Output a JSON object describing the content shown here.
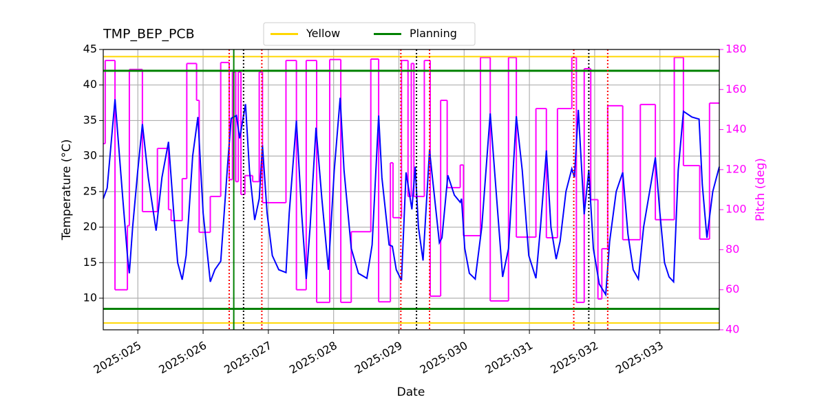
{
  "chart_data": {
    "type": "line",
    "title": "TMP_BEP_PCB",
    "xlabel": "Date",
    "ylabel": "Temperature (°C)",
    "y2label": "Pitch (deg)",
    "xlim": [
      24.47,
      33.91
    ],
    "ylim": [
      5.55,
      45
    ],
    "y2lim": [
      40,
      180
    ],
    "xticks": [
      {
        "value": 25,
        "label": "2025:025"
      },
      {
        "value": 26,
        "label": "2025:026"
      },
      {
        "value": 27,
        "label": "2025:027"
      },
      {
        "value": 28,
        "label": "2025:028"
      },
      {
        "value": 29,
        "label": "2025:029"
      },
      {
        "value": 30,
        "label": "2025:030"
      },
      {
        "value": 31,
        "label": "2025:031"
      },
      {
        "value": 32,
        "label": "2025:032"
      },
      {
        "value": 33,
        "label": "2025:033"
      }
    ],
    "yticks": [
      10,
      15,
      20,
      25,
      30,
      35,
      40,
      45
    ],
    "y2ticks": [
      40,
      60,
      80,
      100,
      120,
      140,
      160,
      180
    ],
    "grid": true,
    "legend": "upper center",
    "y2color": "#ff00ff",
    "limit_lines": [
      {
        "name": "Yellow",
        "color": "#ffd700",
        "values": [
          44,
          6.5
        ]
      },
      {
        "name": "Planning",
        "color": "#008000",
        "values": [
          42,
          8.5
        ]
      }
    ],
    "vlines": [
      {
        "color": "#008000",
        "style": "solid",
        "x": [
          26.47
        ]
      },
      {
        "color": "#ff0000",
        "style": "dotted",
        "x": [
          26.4,
          26.9,
          29.03,
          29.47,
          31.68,
          32.2
        ]
      },
      {
        "color": "#000000",
        "style": "dotted",
        "x": [
          26.62,
          29.27,
          31.91
        ]
      }
    ],
    "series": [
      {
        "color": "#ff00ff",
        "axis": "y2",
        "step": "post",
        "x": [
          24.47,
          24.5,
          24.65,
          24.84,
          24.87,
          25.07,
          25.3,
          25.47,
          25.51,
          25.68,
          25.75,
          25.9,
          25.94,
          26.11,
          26.27,
          26.4,
          26.45,
          26.5,
          26.54,
          26.58,
          26.64,
          26.76,
          26.86,
          26.91,
          27.27,
          27.43,
          27.58,
          27.74,
          27.94,
          28.11,
          28.27,
          28.57,
          28.69,
          28.87,
          28.91,
          29.04,
          29.14,
          29.19,
          29.23,
          29.39,
          29.48,
          29.64,
          29.74,
          29.94,
          29.99,
          30.25,
          30.4,
          30.68,
          30.8,
          31.1,
          31.26,
          31.43,
          31.65,
          31.72,
          31.84,
          31.94,
          32.05,
          32.11,
          32.2,
          32.43,
          32.7,
          32.93,
          33.22,
          33.36,
          33.61,
          33.76
        ],
        "values": [
          133,
          174.5,
          60,
          92,
          170,
          99,
          130.6,
          100,
          94.5,
          115.5,
          173,
          154.6,
          88.7,
          106.6,
          173.5,
          115,
          168.7,
          114,
          168.7,
          107.6,
          117,
          114,
          168.7,
          103.5,
          174.5,
          60,
          174.5,
          53.7,
          175,
          53.7,
          89,
          175.2,
          54,
          123.4,
          96,
          174.5,
          106.6,
          173,
          106.6,
          174.5,
          56.8,
          154.6,
          111,
          122.3,
          87,
          176,
          54.4,
          176,
          86.3,
          150.5,
          86,
          150.5,
          176,
          53.7,
          170.4,
          105,
          55.4,
          80.5,
          151.9,
          85,
          152.5,
          95,
          176,
          122,
          85.3,
          153.2
        ]
      },
      {
        "color": "#0000ff",
        "x": [
          24.47,
          24.53,
          24.65,
          24.77,
          24.84,
          24.87,
          24.92,
          25.0,
          25.07,
          25.16,
          25.28,
          25.37,
          25.47,
          25.55,
          25.61,
          25.68,
          25.74,
          25.84,
          25.92,
          26.0,
          26.11,
          26.18,
          26.27,
          26.37,
          26.43,
          26.51,
          26.56,
          26.65,
          26.71,
          26.79,
          26.86,
          26.91,
          26.98,
          27.06,
          27.16,
          27.27,
          27.32,
          27.43,
          27.51,
          27.58,
          27.64,
          27.73,
          27.82,
          27.92,
          28.01,
          28.1,
          28.16,
          28.27,
          28.38,
          28.51,
          28.59,
          28.69,
          28.74,
          28.85,
          28.9,
          28.96,
          29.04,
          29.11,
          29.2,
          29.25,
          29.3,
          29.37,
          29.47,
          29.56,
          29.62,
          29.66,
          29.75,
          29.85,
          29.94,
          29.96,
          30.01,
          30.08,
          30.17,
          30.27,
          30.4,
          30.49,
          30.59,
          30.68,
          30.8,
          30.89,
          30.99,
          31.1,
          31.17,
          31.26,
          31.33,
          31.41,
          31.47,
          31.56,
          31.65,
          31.69,
          31.75,
          31.84,
          31.91,
          31.98,
          32.07,
          32.17,
          32.23,
          32.33,
          32.43,
          32.51,
          32.59,
          32.67,
          32.75,
          32.86,
          32.93,
          33.0,
          33.07,
          33.14,
          33.21,
          33.28,
          33.36,
          33.49,
          33.6,
          33.65,
          33.72,
          33.81,
          33.91
        ],
        "values": [
          24,
          25.5,
          38,
          24,
          16,
          13.5,
          20,
          28,
          34.5,
          27,
          19.5,
          27,
          32,
          22,
          15,
          12.6,
          16,
          30,
          35.5,
          22,
          12.3,
          14,
          15.2,
          28,
          35.3,
          35.7,
          32.5,
          37.3,
          28,
          21,
          24,
          31.5,
          22,
          16,
          14,
          13.6,
          22,
          35,
          22,
          12.7,
          20,
          34,
          24,
          14,
          28,
          38.2,
          28,
          17,
          13.5,
          12.8,
          17.5,
          35.7,
          27,
          17.5,
          17.3,
          14,
          12.5,
          27.7,
          22.5,
          28.5,
          20,
          15.3,
          30.8,
          23,
          17.8,
          18.5,
          27.3,
          24.5,
          23.5,
          24,
          17,
          13.5,
          12.7,
          20,
          36,
          25,
          13,
          17,
          35.6,
          28,
          16,
          12.8,
          20,
          30.8,
          20,
          15.5,
          18,
          25,
          28.2,
          27,
          36.5,
          21.8,
          28,
          17,
          12,
          10.5,
          18,
          25,
          27.7,
          19,
          14,
          12.7,
          20,
          26,
          29.8,
          22,
          15,
          13,
          12.3,
          28,
          36.3,
          35.5,
          35.2,
          26,
          18.5,
          25,
          28.5
        ]
      }
    ]
  }
}
